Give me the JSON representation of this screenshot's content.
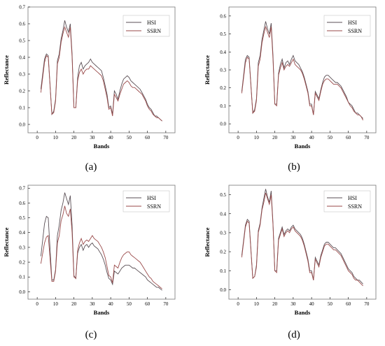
{
  "colors": {
    "hsi": "#5a4f55",
    "ssrn": "#9a4a4a",
    "axis": "#000000",
    "frame": "#777777"
  },
  "chart_data": [
    {
      "type": "line",
      "caption": "(a)",
      "xlabel": "Bands",
      "ylabel": "Reflectance",
      "xlim": [
        -5,
        75
      ],
      "ylim": [
        -0.05,
        0.7
      ],
      "xticks": [
        "0",
        "10",
        "20",
        "30",
        "40",
        "50",
        "60",
        "70"
      ],
      "yticks": [
        "0.0",
        "0.1",
        "0.2",
        "0.3",
        "0.4",
        "0.5",
        "0.6",
        "0.7"
      ],
      "legend_position": "top-right",
      "x": [
        2,
        4,
        5,
        6,
        8,
        9,
        10,
        11,
        12,
        13,
        14,
        15,
        16,
        17,
        18,
        19,
        20,
        21,
        22,
        23,
        24,
        25,
        26,
        27,
        28,
        29,
        30,
        31,
        32,
        33,
        34,
        35,
        36,
        37,
        38,
        39,
        40,
        41,
        42,
        43,
        44,
        45,
        46,
        47,
        48,
        49,
        50,
        51,
        52,
        53,
        54,
        55,
        56,
        57,
        58,
        59,
        60,
        61,
        62,
        63,
        64,
        65,
        66,
        67,
        68
      ],
      "series": [
        {
          "name": "HSI",
          "values": [
            0.21,
            0.39,
            0.42,
            0.41,
            0.06,
            0.08,
            0.15,
            0.38,
            0.42,
            0.51,
            0.56,
            0.62,
            0.58,
            0.55,
            0.6,
            0.42,
            0.1,
            0.1,
            0.28,
            0.35,
            0.37,
            0.33,
            0.35,
            0.36,
            0.37,
            0.39,
            0.37,
            0.36,
            0.35,
            0.34,
            0.33,
            0.32,
            0.28,
            0.23,
            0.18,
            0.1,
            0.11,
            0.06,
            0.2,
            0.18,
            0.15,
            0.2,
            0.24,
            0.27,
            0.28,
            0.29,
            0.28,
            0.26,
            0.25,
            0.24,
            0.23,
            0.22,
            0.21,
            0.19,
            0.17,
            0.15,
            0.12,
            0.1,
            0.09,
            0.07,
            0.05,
            0.05,
            0.04,
            0.03,
            0.02
          ]
        },
        {
          "name": "SSRN",
          "values": [
            0.19,
            0.37,
            0.41,
            0.4,
            0.06,
            0.07,
            0.14,
            0.36,
            0.4,
            0.49,
            0.54,
            0.58,
            0.55,
            0.52,
            0.58,
            0.4,
            0.1,
            0.1,
            0.26,
            0.31,
            0.33,
            0.3,
            0.32,
            0.33,
            0.33,
            0.35,
            0.34,
            0.33,
            0.32,
            0.31,
            0.3,
            0.29,
            0.26,
            0.21,
            0.16,
            0.09,
            0.1,
            0.05,
            0.18,
            0.16,
            0.14,
            0.18,
            0.21,
            0.24,
            0.25,
            0.26,
            0.25,
            0.23,
            0.22,
            0.22,
            0.21,
            0.2,
            0.19,
            0.18,
            0.16,
            0.14,
            0.11,
            0.09,
            0.08,
            0.06,
            0.05,
            0.04,
            0.04,
            0.03,
            0.02
          ]
        }
      ]
    },
    {
      "type": "line",
      "caption": "(b)",
      "xlabel": "Bands",
      "ylabel": "Reflectance",
      "xlim": [
        -5,
        75
      ],
      "ylim": [
        -0.05,
        0.65
      ],
      "xticks": [
        "0",
        "10",
        "20",
        "30",
        "40",
        "50",
        "60",
        "70"
      ],
      "yticks": [
        "0.0",
        "0.1",
        "0.2",
        "0.3",
        "0.4",
        "0.5",
        "0.6"
      ],
      "legend_position": "top-right",
      "x": [
        2,
        4,
        5,
        6,
        8,
        9,
        10,
        11,
        12,
        13,
        14,
        15,
        16,
        17,
        18,
        19,
        20,
        21,
        22,
        23,
        24,
        25,
        26,
        27,
        28,
        29,
        30,
        31,
        32,
        33,
        34,
        35,
        36,
        37,
        38,
        39,
        40,
        41,
        42,
        43,
        44,
        45,
        46,
        47,
        48,
        49,
        50,
        51,
        52,
        53,
        54,
        55,
        56,
        57,
        58,
        59,
        60,
        61,
        62,
        63,
        64,
        65,
        66,
        67,
        68
      ],
      "series": [
        {
          "name": "HSI",
          "values": [
            0.18,
            0.36,
            0.38,
            0.37,
            0.06,
            0.08,
            0.14,
            0.34,
            0.38,
            0.47,
            0.52,
            0.57,
            0.53,
            0.5,
            0.56,
            0.38,
            0.11,
            0.11,
            0.28,
            0.33,
            0.36,
            0.31,
            0.34,
            0.35,
            0.33,
            0.36,
            0.38,
            0.35,
            0.34,
            0.33,
            0.31,
            0.29,
            0.26,
            0.22,
            0.18,
            0.11,
            0.11,
            0.05,
            0.18,
            0.16,
            0.14,
            0.19,
            0.23,
            0.26,
            0.27,
            0.27,
            0.26,
            0.25,
            0.24,
            0.23,
            0.23,
            0.22,
            0.21,
            0.19,
            0.17,
            0.15,
            0.12,
            0.11,
            0.1,
            0.08,
            0.06,
            0.06,
            0.05,
            0.04,
            0.03
          ]
        },
        {
          "name": "SSRN",
          "values": [
            0.17,
            0.34,
            0.37,
            0.36,
            0.06,
            0.07,
            0.13,
            0.32,
            0.36,
            0.45,
            0.5,
            0.54,
            0.51,
            0.48,
            0.54,
            0.36,
            0.11,
            0.1,
            0.27,
            0.31,
            0.34,
            0.3,
            0.32,
            0.33,
            0.32,
            0.34,
            0.36,
            0.33,
            0.32,
            0.31,
            0.3,
            0.28,
            0.25,
            0.21,
            0.17,
            0.1,
            0.1,
            0.05,
            0.17,
            0.15,
            0.13,
            0.18,
            0.22,
            0.24,
            0.25,
            0.25,
            0.24,
            0.23,
            0.22,
            0.22,
            0.22,
            0.21,
            0.2,
            0.18,
            0.16,
            0.14,
            0.12,
            0.1,
            0.09,
            0.07,
            0.06,
            0.05,
            0.05,
            0.04,
            0.02
          ]
        }
      ]
    },
    {
      "type": "line",
      "caption": "(c)",
      "xlabel": "Bands",
      "ylabel": "Reflectance",
      "xlim": [
        -5,
        75
      ],
      "ylim": [
        -0.05,
        0.72
      ],
      "xticks": [
        "0",
        "10",
        "20",
        "30",
        "40",
        "50",
        "60",
        "70"
      ],
      "yticks": [
        "0.0",
        "0.1",
        "0.2",
        "0.3",
        "0.4",
        "0.5",
        "0.6",
        "0.7"
      ],
      "legend_position": "top-right",
      "x": [
        2,
        4,
        5,
        6,
        8,
        9,
        10,
        11,
        12,
        13,
        14,
        15,
        16,
        17,
        18,
        19,
        20,
        21,
        22,
        23,
        24,
        25,
        26,
        27,
        28,
        29,
        30,
        31,
        32,
        33,
        34,
        35,
        36,
        37,
        38,
        39,
        40,
        41,
        42,
        43,
        44,
        45,
        46,
        47,
        48,
        49,
        50,
        51,
        52,
        53,
        54,
        55,
        56,
        57,
        58,
        59,
        60,
        61,
        62,
        63,
        64,
        65,
        66,
        67,
        68
      ],
      "series": [
        {
          "name": "HSI",
          "values": [
            0.24,
            0.46,
            0.51,
            0.5,
            0.08,
            0.08,
            0.15,
            0.38,
            0.45,
            0.55,
            0.6,
            0.67,
            0.63,
            0.59,
            0.65,
            0.45,
            0.11,
            0.09,
            0.26,
            0.3,
            0.32,
            0.28,
            0.31,
            0.32,
            0.3,
            0.32,
            0.33,
            0.31,
            0.3,
            0.29,
            0.27,
            0.25,
            0.22,
            0.18,
            0.13,
            0.09,
            0.08,
            0.05,
            0.14,
            0.13,
            0.12,
            0.14,
            0.16,
            0.17,
            0.18,
            0.18,
            0.18,
            0.17,
            0.16,
            0.16,
            0.15,
            0.14,
            0.13,
            0.12,
            0.11,
            0.1,
            0.08,
            0.07,
            0.06,
            0.05,
            0.04,
            0.03,
            0.03,
            0.02,
            0.01
          ]
        },
        {
          "name": "SSRN",
          "values": [
            0.19,
            0.33,
            0.37,
            0.38,
            0.07,
            0.07,
            0.14,
            0.33,
            0.38,
            0.48,
            0.52,
            0.58,
            0.53,
            0.51,
            0.56,
            0.4,
            0.1,
            0.09,
            0.28,
            0.33,
            0.36,
            0.32,
            0.34,
            0.35,
            0.34,
            0.36,
            0.38,
            0.36,
            0.35,
            0.34,
            0.32,
            0.3,
            0.27,
            0.23,
            0.17,
            0.11,
            0.1,
            0.06,
            0.18,
            0.17,
            0.16,
            0.2,
            0.23,
            0.25,
            0.26,
            0.27,
            0.27,
            0.25,
            0.24,
            0.23,
            0.22,
            0.21,
            0.2,
            0.18,
            0.16,
            0.14,
            0.12,
            0.1,
            0.09,
            0.07,
            0.06,
            0.05,
            0.04,
            0.03,
            0.02
          ]
        }
      ]
    },
    {
      "type": "line",
      "caption": "(d)",
      "xlabel": "Bands",
      "ylabel": "Reflectance",
      "xlim": [
        -5,
        75
      ],
      "ylim": [
        -0.05,
        0.55
      ],
      "xticks": [
        "0",
        "10",
        "20",
        "30",
        "40",
        "50",
        "60",
        "70"
      ],
      "yticks": [
        "0.0",
        "0.1",
        "0.2",
        "0.3",
        "0.4",
        "0.5"
      ],
      "legend_position": "top-right",
      "x": [
        2,
        4,
        5,
        6,
        8,
        9,
        10,
        11,
        12,
        13,
        14,
        15,
        16,
        17,
        18,
        19,
        20,
        21,
        22,
        23,
        24,
        25,
        26,
        27,
        28,
        29,
        30,
        31,
        32,
        33,
        34,
        35,
        36,
        37,
        38,
        39,
        40,
        41,
        42,
        43,
        44,
        45,
        46,
        47,
        48,
        49,
        50,
        51,
        52,
        53,
        54,
        55,
        56,
        57,
        58,
        59,
        60,
        61,
        62,
        63,
        64,
        65,
        66,
        67,
        68
      ],
      "series": [
        {
          "name": "HSI",
          "values": [
            0.18,
            0.34,
            0.37,
            0.36,
            0.06,
            0.07,
            0.13,
            0.31,
            0.35,
            0.43,
            0.48,
            0.53,
            0.49,
            0.46,
            0.52,
            0.35,
            0.1,
            0.1,
            0.27,
            0.3,
            0.33,
            0.29,
            0.31,
            0.32,
            0.31,
            0.33,
            0.34,
            0.32,
            0.31,
            0.3,
            0.29,
            0.27,
            0.24,
            0.2,
            0.16,
            0.1,
            0.1,
            0.05,
            0.17,
            0.15,
            0.13,
            0.18,
            0.21,
            0.24,
            0.25,
            0.25,
            0.24,
            0.23,
            0.22,
            0.22,
            0.21,
            0.2,
            0.19,
            0.17,
            0.15,
            0.13,
            0.11,
            0.1,
            0.09,
            0.07,
            0.06,
            0.05,
            0.05,
            0.04,
            0.03
          ]
        },
        {
          "name": "SSRN",
          "values": [
            0.17,
            0.33,
            0.36,
            0.35,
            0.06,
            0.07,
            0.12,
            0.3,
            0.34,
            0.42,
            0.46,
            0.51,
            0.48,
            0.45,
            0.5,
            0.34,
            0.1,
            0.09,
            0.26,
            0.29,
            0.32,
            0.28,
            0.3,
            0.31,
            0.3,
            0.32,
            0.33,
            0.31,
            0.3,
            0.29,
            0.28,
            0.26,
            0.23,
            0.19,
            0.15,
            0.09,
            0.09,
            0.05,
            0.16,
            0.14,
            0.12,
            0.17,
            0.2,
            0.23,
            0.24,
            0.24,
            0.23,
            0.22,
            0.21,
            0.21,
            0.2,
            0.19,
            0.18,
            0.16,
            0.14,
            0.12,
            0.1,
            0.09,
            0.08,
            0.06,
            0.05,
            0.05,
            0.04,
            0.03,
            0.02
          ]
        }
      ]
    }
  ]
}
